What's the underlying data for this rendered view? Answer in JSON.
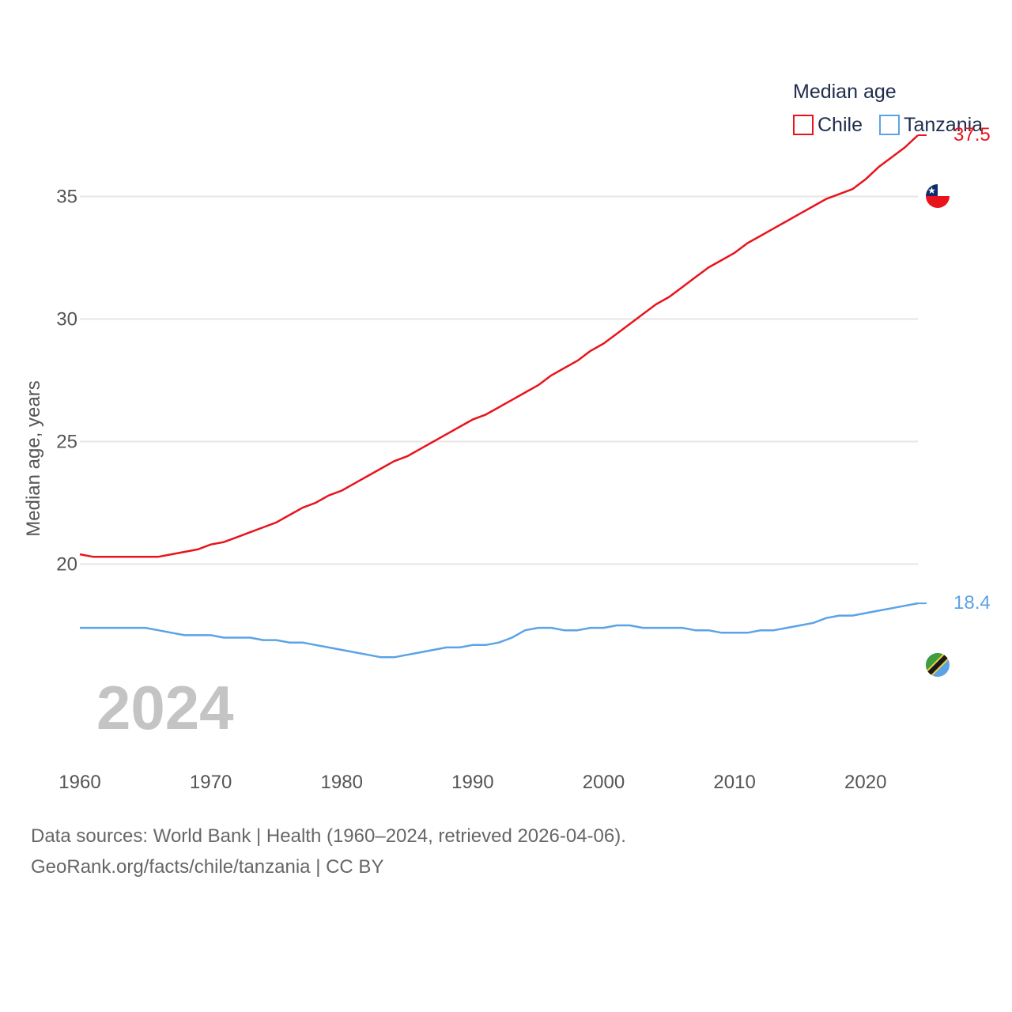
{
  "chart_data": {
    "type": "line",
    "legend_title": "Median age",
    "ylabel": "Median age, years",
    "xlim": [
      1960,
      2024
    ],
    "ylim": [
      14.5,
      38.5
    ],
    "y_ticks": [
      20,
      25,
      30,
      35
    ],
    "x_ticks": [
      1960,
      1970,
      1980,
      1990,
      2000,
      2010,
      2020
    ],
    "gridlines": true,
    "legend_position": "top-right",
    "current_year_label": "2024",
    "x": [
      1960,
      1961,
      1962,
      1963,
      1964,
      1965,
      1966,
      1967,
      1968,
      1969,
      1970,
      1971,
      1972,
      1973,
      1974,
      1975,
      1976,
      1977,
      1978,
      1979,
      1980,
      1981,
      1982,
      1983,
      1984,
      1985,
      1986,
      1987,
      1988,
      1989,
      1990,
      1991,
      1992,
      1993,
      1994,
      1995,
      1996,
      1997,
      1998,
      1999,
      2000,
      2001,
      2002,
      2003,
      2004,
      2005,
      2006,
      2007,
      2008,
      2009,
      2010,
      2011,
      2012,
      2013,
      2014,
      2015,
      2016,
      2017,
      2018,
      2019,
      2020,
      2021,
      2022,
      2023,
      2024
    ],
    "series": [
      {
        "name": "Chile",
        "color": "#e8141c",
        "end_label": "37.5",
        "values": [
          20.4,
          20.3,
          20.3,
          20.3,
          20.3,
          20.3,
          20.3,
          20.4,
          20.5,
          20.6,
          20.8,
          20.9,
          21.1,
          21.3,
          21.5,
          21.7,
          22.0,
          22.3,
          22.5,
          22.8,
          23.0,
          23.3,
          23.6,
          23.9,
          24.2,
          24.4,
          24.7,
          25.0,
          25.3,
          25.6,
          25.9,
          26.1,
          26.4,
          26.7,
          27.0,
          27.3,
          27.7,
          28.0,
          28.3,
          28.7,
          29.0,
          29.4,
          29.8,
          30.2,
          30.6,
          30.9,
          31.3,
          31.7,
          32.1,
          32.4,
          32.7,
          33.1,
          33.4,
          33.7,
          34.0,
          34.3,
          34.6,
          34.9,
          35.1,
          35.3,
          35.7,
          36.2,
          36.6,
          37.0,
          37.5
        ]
      },
      {
        "name": "Tanzania",
        "color": "#5ba3e6",
        "end_label": "18.4",
        "values": [
          17.4,
          17.4,
          17.4,
          17.4,
          17.4,
          17.4,
          17.3,
          17.2,
          17.1,
          17.1,
          17.1,
          17.0,
          17.0,
          17.0,
          16.9,
          16.9,
          16.8,
          16.8,
          16.7,
          16.6,
          16.5,
          16.4,
          16.3,
          16.2,
          16.2,
          16.3,
          16.4,
          16.5,
          16.6,
          16.6,
          16.7,
          16.7,
          16.8,
          17.0,
          17.3,
          17.4,
          17.4,
          17.3,
          17.3,
          17.4,
          17.4,
          17.5,
          17.5,
          17.4,
          17.4,
          17.4,
          17.4,
          17.3,
          17.3,
          17.2,
          17.2,
          17.2,
          17.3,
          17.3,
          17.4,
          17.5,
          17.6,
          17.8,
          17.9,
          17.9,
          18.0,
          18.1,
          18.2,
          18.3,
          18.4
        ]
      }
    ]
  },
  "icons": {
    "chile": "chile-flag-icon",
    "tanzania": "tanzania-flag-icon"
  },
  "footer": {
    "source": "Data sources: World Bank | Health (1960–2024, retrieved 2026-04-06).",
    "credit": "GeoRank.org/facts/chile/tanzania | CC BY"
  }
}
